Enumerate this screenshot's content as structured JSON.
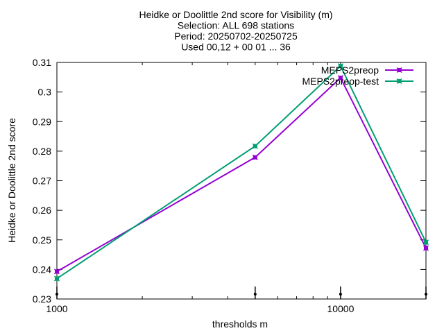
{
  "chart_data": {
    "type": "line",
    "title_lines": [
      "Heidke or Doolittle 2nd score  for Visibility (m)",
      "Selection: ALL    698 stations",
      "Period: 20250702-20250725",
      "Used 00,12 + 00 01 ... 36"
    ],
    "xlabel": "thresholds m",
    "ylabel": "Heidke or Doolittle 2nd score",
    "x_scale": "log",
    "xlim": [
      1000,
      20000
    ],
    "ylim": [
      0.23,
      0.31
    ],
    "x_tick_labels": [
      {
        "value": 1000,
        "label": "1000"
      },
      {
        "value": 10000,
        "label": "10000"
      }
    ],
    "y_ticks": [
      {
        "value": 0.23,
        "label": "0.23"
      },
      {
        "value": 0.24,
        "label": "0.24"
      },
      {
        "value": 0.25,
        "label": "0.25"
      },
      {
        "value": 0.26,
        "label": "0.26"
      },
      {
        "value": 0.27,
        "label": "0.27"
      },
      {
        "value": 0.28,
        "label": "0.28"
      },
      {
        "value": 0.29,
        "label": "0.29"
      },
      {
        "value": 0.3,
        "label": "0.3"
      },
      {
        "value": 0.31,
        "label": "0.31"
      }
    ],
    "x": [
      1000,
      5000,
      10000,
      20000
    ],
    "series": [
      {
        "name": "MEPS2preop",
        "color": "#9400d3",
        "values": [
          0.2393,
          0.2779,
          0.3048,
          0.2472
        ]
      },
      {
        "name": "MEPS2preop-test",
        "color": "#009e73",
        "values": [
          0.2369,
          0.2817,
          0.3088,
          0.2492
        ]
      }
    ],
    "legend_position": "top-right",
    "grid": false
  }
}
